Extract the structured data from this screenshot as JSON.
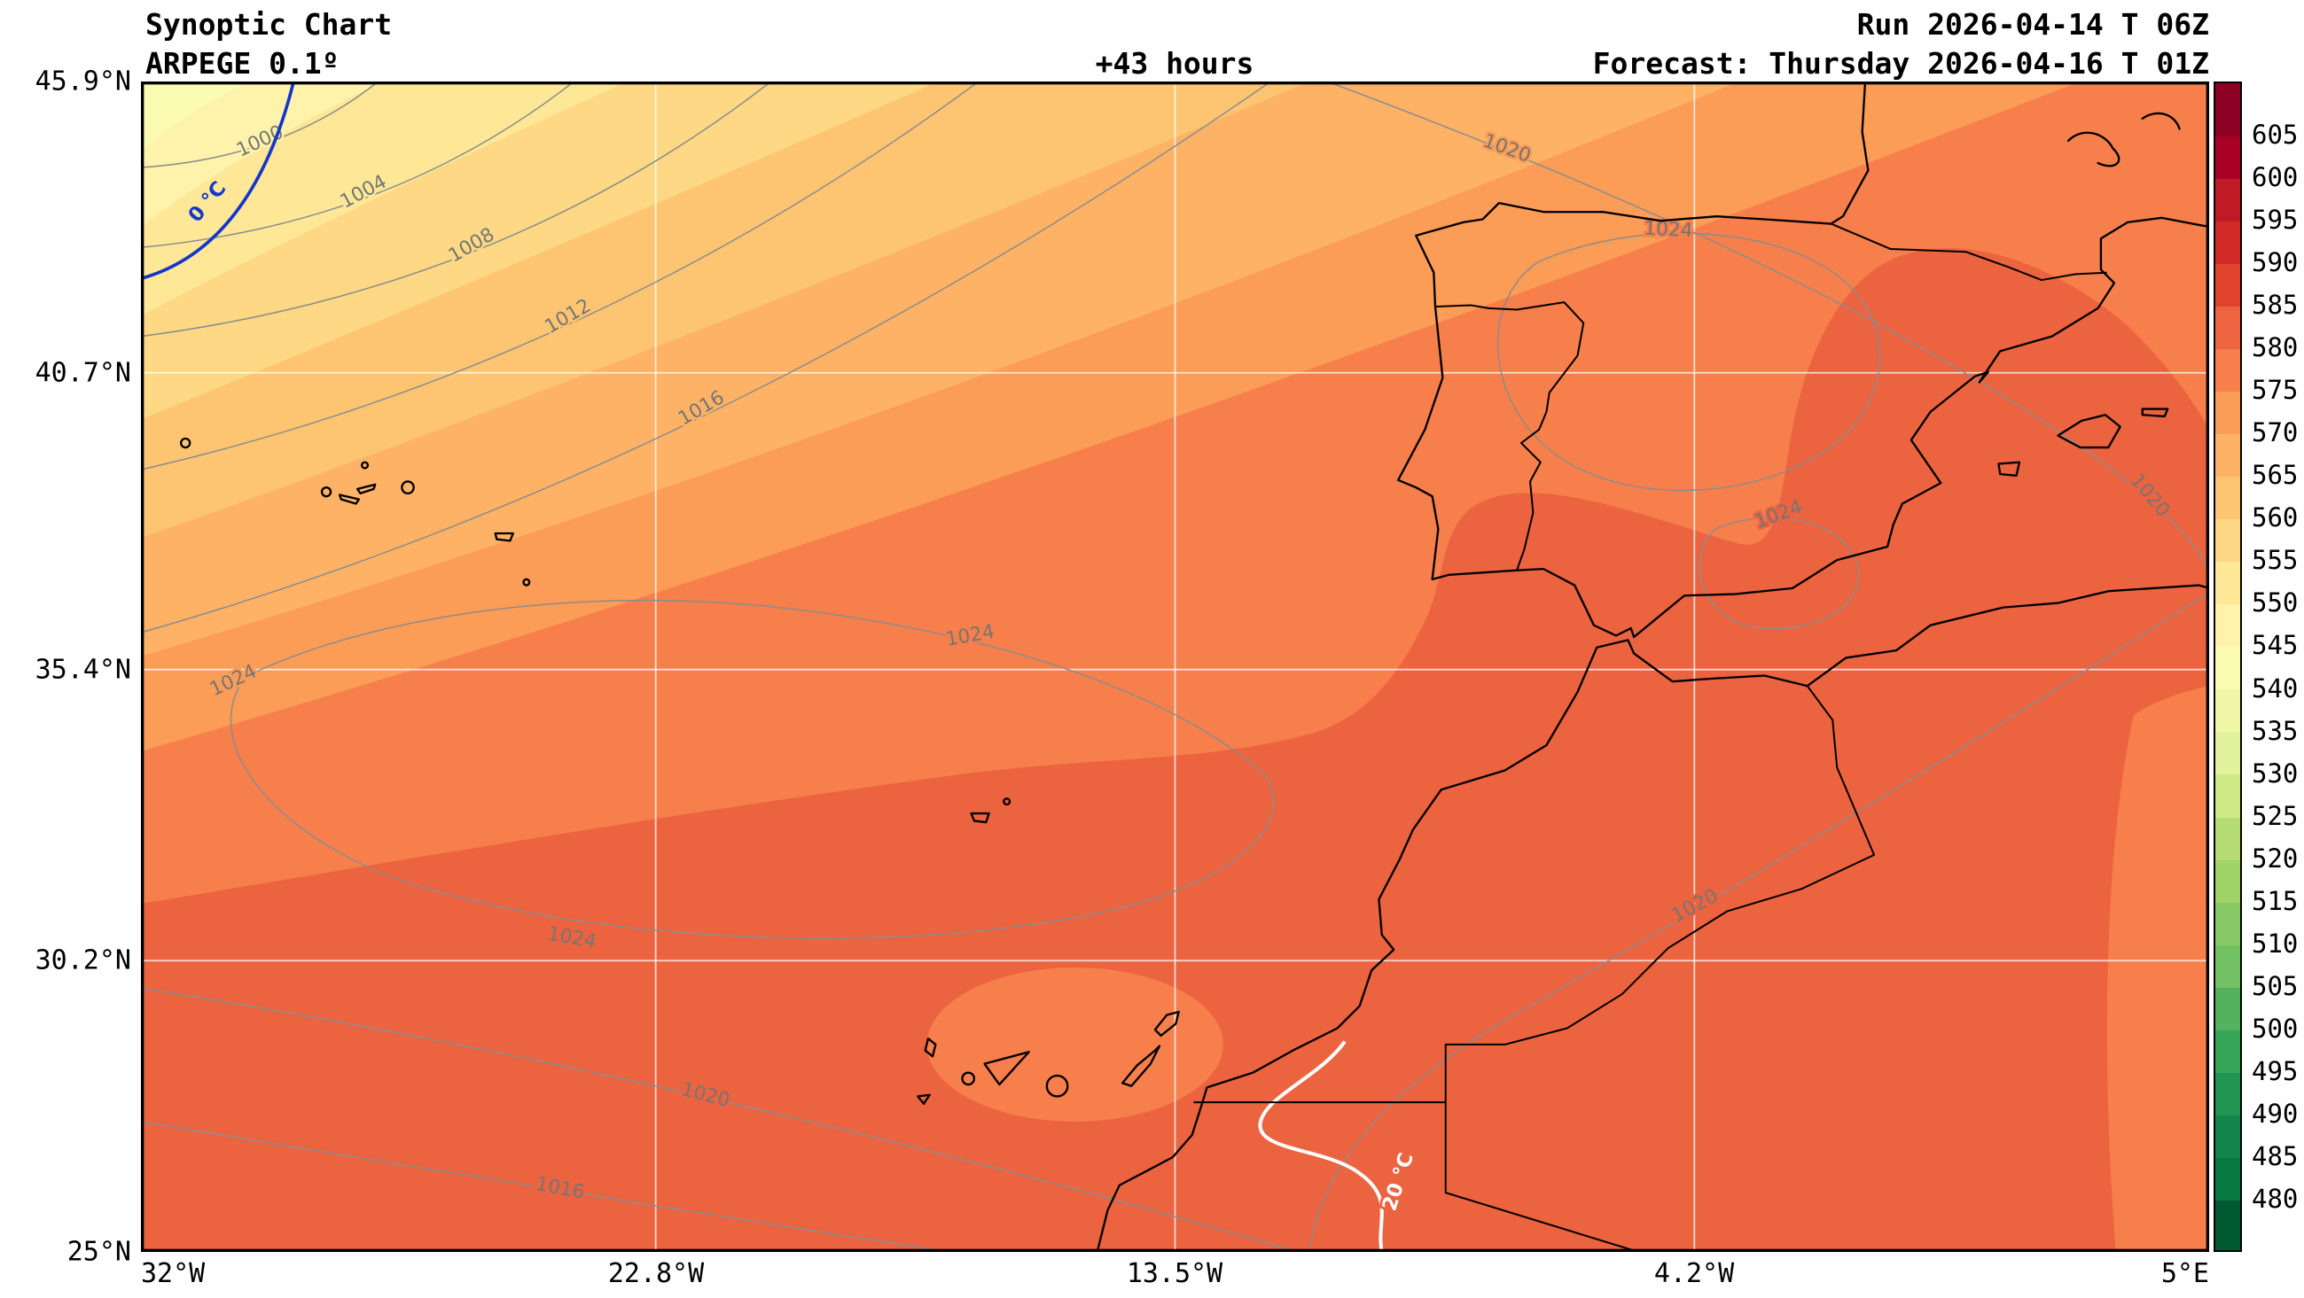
{
  "header": {
    "title": "Synoptic Chart",
    "model": "ARPEGE 0.1º",
    "lead_time": "+43 hours",
    "run": "Run 2026-04-14 T 06Z",
    "forecast": "Forecast: Thursday 2026-04-16 T 01Z"
  },
  "axes": {
    "lat_ticks": [
      "45.9°N",
      "40.7°N",
      "35.4°N",
      "30.2°N",
      "25°N"
    ],
    "lon_ticks": [
      "32°W",
      "22.8°W",
      "13.5°W",
      "4.2°W",
      "5°E"
    ]
  },
  "isolines": {
    "pressure": {
      "p1000": "1000",
      "p1004": "1004",
      "p1008": "1008",
      "p1012": "1012",
      "p1016": "1016",
      "p1020": "1020",
      "p1024": "1024"
    },
    "temperature": {
      "zero": "0 °C",
      "twenty": "20 °C"
    },
    "colors": {
      "pressure_line": "#8c8c8c",
      "zero_line": "#1535cd",
      "twenty_line": "#ffffff"
    }
  },
  "colorbar": {
    "ticks": [
      "605",
      "600",
      "595",
      "590",
      "585",
      "580",
      "575",
      "570",
      "565",
      "560",
      "555",
      "550",
      "545",
      "540",
      "535",
      "530",
      "525",
      "520",
      "515",
      "510",
      "505",
      "500",
      "495",
      "490",
      "485",
      "480"
    ],
    "colors": [
      "#8b0023",
      "#ab0026",
      "#bf1a26",
      "#d22b27",
      "#e0442e",
      "#ef6440",
      "#f67f4b",
      "#fb9c57",
      "#fdb266",
      "#fdc572",
      "#fed884",
      "#fee897",
      "#fff3ab",
      "#fbfbb4",
      "#f0f8a8",
      "#e2f29a",
      "#cdea84",
      "#b5dd74",
      "#a0d469",
      "#8aca66",
      "#72c264",
      "#54b25f",
      "#37a558",
      "#219552",
      "#12864c",
      "#077943",
      "#005a31"
    ]
  },
  "chart_data": {
    "type": "heatmap",
    "subtype": "synoptic filled-contour forecast map",
    "title": "Synoptic Chart",
    "model": "ARPEGE 0.1º",
    "lead_time_hours": 43,
    "run": "2026-04-14 06Z",
    "valid": "Thursday 2026-04-16 01Z",
    "x_axis": {
      "label": "longitude",
      "ticks": [
        "32°W",
        "22.8°W",
        "13.5°W",
        "4.2°W",
        "5°E"
      ]
    },
    "y_axis": {
      "label": "latitude",
      "ticks": [
        "25°N",
        "30.2°N",
        "35.4°N",
        "40.7°N",
        "45.9°N"
      ]
    },
    "color_scale": {
      "ticks": [
        605,
        600,
        595,
        590,
        585,
        580,
        575,
        570,
        565,
        560,
        555,
        550,
        545,
        540,
        535,
        530,
        525,
        520,
        515,
        510,
        505,
        500,
        495,
        490,
        485,
        480
      ],
      "min": 480,
      "max": 605,
      "step": 5,
      "orientation": "vertical-right",
      "low_color": "dark green",
      "high_color": "dark red"
    },
    "shaded_field_bands": [
      {
        "region": "northwest corner",
        "band": "540-545"
      },
      {
        "region": "upper-left diagonal bands",
        "band": "545-575"
      },
      {
        "region": "Bay of Biscay, N Iberia, S France, mid Atlantic",
        "band": "575-580"
      },
      {
        "region": "central/S Atlantic, S Iberia, NE Spain, NW Africa",
        "band": "580-585"
      },
      {
        "region": "light patch around Canary Islands",
        "band": "575-580"
      },
      {
        "region": "strip along SE map edge (inland Algeria)",
        "band": "575-580"
      }
    ],
    "isobars_hPa": [
      1000,
      1004,
      1008,
      1012,
      1016,
      1020,
      1024
    ],
    "isotherms_celsius": [
      "0 °C",
      "20 °C"
    ],
    "grid": true,
    "legend_position": "right"
  }
}
